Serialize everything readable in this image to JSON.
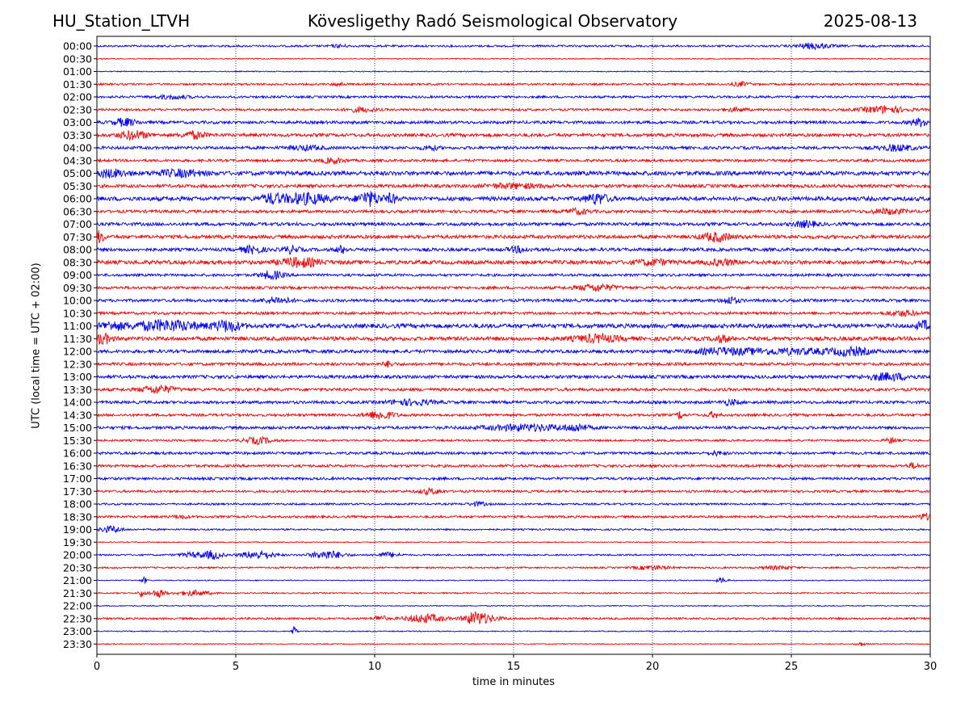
{
  "header": {
    "station": "HU_Station_LTVH",
    "observatory": "Kövesligethy Radó Seismological Observatory",
    "date": "2025-08-13"
  },
  "colors": {
    "blue": "#0000ff",
    "red": "#ff0000",
    "axis": "#000000",
    "grid": "#000080"
  },
  "chart_data": {
    "type": "line",
    "title": "Kövesligethy Radó Seismological Observatory",
    "xlabel": "time in minutes",
    "ylabel": "UTC (local time = UTC + 02:00)",
    "xlim": [
      0,
      30
    ],
    "xticks": [
      0,
      5,
      10,
      15,
      20,
      25,
      30
    ],
    "vertical_grid": [
      5,
      10,
      15,
      20,
      25
    ],
    "trace_colors_alternate": [
      "blue",
      "red"
    ],
    "rows": [
      "00:00",
      "00:30",
      "01:00",
      "01:30",
      "02:00",
      "02:30",
      "03:00",
      "03:30",
      "04:00",
      "04:30",
      "05:00",
      "05:30",
      "06:00",
      "06:30",
      "07:00",
      "07:30",
      "08:00",
      "08:30",
      "09:00",
      "09:30",
      "10:00",
      "10:30",
      "11:00",
      "11:30",
      "12:00",
      "12:30",
      "13:00",
      "13:30",
      "14:00",
      "14:30",
      "15:00",
      "15:30",
      "16:00",
      "16:30",
      "17:00",
      "17:30",
      "18:00",
      "18:30",
      "19:00",
      "19:30",
      "20:00",
      "20:30",
      "21:00",
      "21:30",
      "22:00",
      "22:30",
      "23:00",
      "23:30"
    ],
    "noise_level": [
      1.2,
      0.6,
      0.6,
      1.2,
      1.4,
      1.4,
      1.8,
      2.0,
      1.8,
      1.6,
      2.6,
      2.0,
      2.6,
      1.8,
      2.0,
      2.2,
      2.0,
      2.4,
      1.6,
      1.6,
      1.8,
      1.6,
      2.6,
      2.4,
      2.0,
      1.8,
      2.0,
      1.8,
      1.8,
      1.6,
      1.8,
      1.2,
      1.6,
      1.6,
      1.6,
      1.4,
      1.2,
      1.4,
      1.0,
      0.6,
      1.0,
      1.0,
      0.6,
      0.8,
      0.6,
      1.2,
      0.6,
      0.6
    ],
    "bursts": [
      [
        [
          25.8,
          0.6,
          3.5
        ],
        [
          8.7,
          0.3,
          1.5
        ]
      ],
      [],
      [],
      [
        [
          23.2,
          0.3,
          2.5
        ],
        [
          8.7,
          0.2,
          2
        ]
      ],
      [
        [
          2.7,
          0.6,
          2
        ]
      ],
      [
        [
          28.3,
          0.8,
          4
        ],
        [
          9.5,
          0.5,
          2.5
        ],
        [
          23,
          0.4,
          2
        ]
      ],
      [
        [
          1,
          0.4,
          4.5
        ],
        [
          29.7,
          0.4,
          4.5
        ]
      ],
      [
        [
          1.3,
          0.5,
          5
        ],
        [
          3.5,
          0.4,
          4
        ]
      ],
      [
        [
          28.8,
          0.6,
          3.5
        ],
        [
          7.5,
          0.6,
          2.5
        ],
        [
          12,
          0.3,
          2.5
        ]
      ],
      [
        [
          8.5,
          0.4,
          3
        ]
      ],
      [
        [
          0.5,
          0.6,
          4
        ],
        [
          3,
          0.8,
          3.5
        ]
      ],
      [
        [
          15,
          1,
          2.5
        ]
      ],
      [
        [
          7.5,
          0.8,
          6
        ],
        [
          9.8,
          0.4,
          8
        ],
        [
          18,
          0.4,
          6
        ],
        [
          6.3,
          0.4,
          5
        ],
        [
          10.6,
          0.2,
          5
        ]
      ],
      [
        [
          17.3,
          0.4,
          3
        ],
        [
          28.5,
          0.6,
          3
        ]
      ],
      [
        [
          25.5,
          0.4,
          3.5
        ]
      ],
      [
        [
          0.1,
          0.15,
          7
        ],
        [
          22.3,
          0.5,
          5
        ]
      ],
      [
        [
          5.6,
          0.4,
          4
        ],
        [
          7,
          0.3,
          4
        ],
        [
          8.8,
          0.2,
          4
        ],
        [
          15.2,
          0.4,
          3
        ]
      ],
      [
        [
          7.3,
          0.7,
          5
        ],
        [
          20,
          0.6,
          3
        ],
        [
          22.5,
          0.5,
          3
        ]
      ],
      [
        [
          6.3,
          0.4,
          5
        ]
      ],
      [
        [
          18,
          0.7,
          4
        ]
      ],
      [
        [
          6.5,
          0.5,
          3.5
        ],
        [
          22.8,
          0.3,
          4
        ]
      ],
      [
        [
          29,
          0.6,
          3
        ]
      ],
      [
        [
          2.5,
          1.2,
          6
        ],
        [
          4.7,
          0.5,
          6
        ],
        [
          0.5,
          0.5,
          4
        ],
        [
          29.8,
          0.3,
          5
        ]
      ],
      [
        [
          0.2,
          0.3,
          6
        ],
        [
          18,
          0.8,
          4
        ],
        [
          22.5,
          0.3,
          3.5
        ]
      ],
      [
        [
          25,
          2,
          3
        ],
        [
          27.2,
          0.6,
          4
        ],
        [
          22.5,
          1,
          3
        ]
      ],
      [
        [
          10.5,
          0.2,
          3
        ]
      ],
      [
        [
          28.5,
          0.8,
          4
        ]
      ],
      [
        [
          2.2,
          0.6,
          4.5
        ]
      ],
      [
        [
          11.3,
          0.8,
          3
        ],
        [
          22.8,
          0.3,
          3
        ]
      ],
      [
        [
          10.2,
          0.5,
          5
        ],
        [
          21,
          0.1,
          5
        ],
        [
          22.2,
          0.2,
          3.5
        ]
      ],
      [
        [
          15.5,
          1.5,
          3.5
        ],
        [
          17.3,
          0.4,
          3.5
        ]
      ],
      [
        [
          5.8,
          0.5,
          4
        ],
        [
          28.6,
          0.2,
          3.5
        ]
      ],
      [
        [
          22.3,
          0.3,
          2
        ]
      ],
      [
        [
          29.4,
          0.2,
          3
        ]
      ],
      [],
      [
        [
          12,
          0.4,
          3
        ]
      ],
      [
        [
          13.7,
          0.3,
          2.5
        ]
      ],
      [
        [
          29.8,
          0.2,
          4
        ],
        [
          3,
          0.3,
          2
        ]
      ],
      [
        [
          0.5,
          0.4,
          4
        ]
      ],
      [],
      [
        [
          4.2,
          0.3,
          5
        ],
        [
          5.8,
          0.6,
          5
        ],
        [
          8.3,
          0.6,
          5
        ],
        [
          10.5,
          0.4,
          3
        ],
        [
          3.5,
          0.5,
          3
        ]
      ],
      [
        [
          20,
          0.6,
          2.5
        ],
        [
          24.5,
          0.6,
          2
        ]
      ],
      [
        [
          1.7,
          0.1,
          4
        ],
        [
          22.5,
          0.2,
          3
        ]
      ],
      [
        [
          2.2,
          0.3,
          4.5
        ],
        [
          3.5,
          0.6,
          3
        ],
        [
          1.6,
          0.1,
          5
        ]
      ],
      [],
      [
        [
          11.8,
          0.7,
          5
        ],
        [
          13.6,
          0.4,
          6
        ],
        [
          10.2,
          0.2,
          4
        ],
        [
          14,
          0.6,
          3
        ]
      ],
      [
        [
          7.1,
          0.1,
          6
        ]
      ],
      [
        [
          27.5,
          0.2,
          2
        ]
      ]
    ]
  }
}
